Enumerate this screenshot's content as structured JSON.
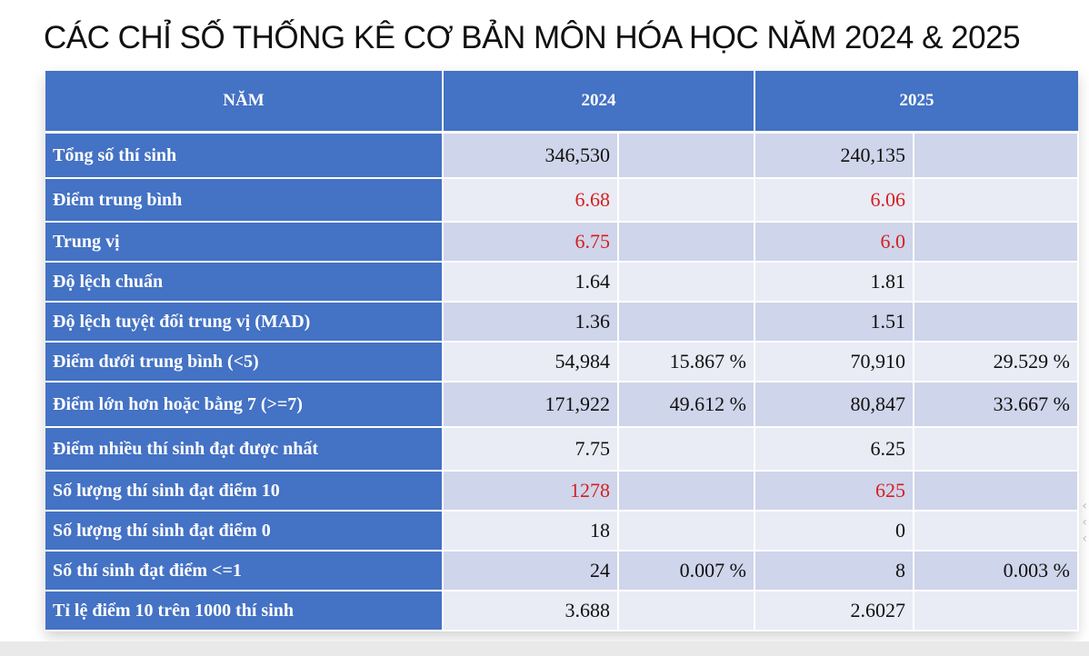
{
  "title": "CÁC CHỈ SỐ THỐNG KÊ CƠ BẢN MÔN HÓA HỌC NĂM 2024 & 2025",
  "header": {
    "col_label": "NĂM",
    "year1": "2024",
    "year2": "2025"
  },
  "accent_red": "#d42020",
  "header_blue": "#4472c4",
  "rows": [
    {
      "label": "Tổng số thí sinh",
      "v2024": "346,530",
      "p2024": "",
      "v2025": "240,135",
      "p2025": ""
    },
    {
      "label": "Điểm trung bình",
      "v2024": "6.68",
      "p2024": "",
      "v2025": "6.06",
      "p2025": ""
    },
    {
      "label": "Trung vị",
      "v2024": "6.75",
      "p2024": "",
      "v2025": "6.0",
      "p2025": ""
    },
    {
      "label": "Độ lệch chuẩn",
      "v2024": "1.64",
      "p2024": "",
      "v2025": "1.81",
      "p2025": ""
    },
    {
      "label": "Độ lệch tuyệt đối trung vị (MAD)",
      "v2024": "1.36",
      "p2024": "",
      "v2025": "1.51",
      "p2025": ""
    },
    {
      "label": "Điểm dưới trung bình (<5)",
      "v2024": "54,984",
      "p2024": "15.867 %",
      "v2025": "70,910",
      "p2025": "29.529 %"
    },
    {
      "label": "Điểm lớn hơn hoặc bằng 7 (>=7)",
      "v2024": "171,922",
      "p2024": "49.612 %",
      "v2025": "80,847",
      "p2025": "33.667 %"
    },
    {
      "label": "Điểm nhiều thí sinh đạt được nhất",
      "v2024": "7.75",
      "p2024": "",
      "v2025": "6.25",
      "p2025": ""
    },
    {
      "label": "Số lượng thí sinh đạt điểm 10",
      "v2024": "1278",
      "p2024": "",
      "v2025": "625",
      "p2025": ""
    },
    {
      "label": "Số lượng thí sinh đạt điểm 0",
      "v2024": "18",
      "p2024": "",
      "v2025": "0",
      "p2025": ""
    },
    {
      "label": "Số thí sinh đạt điểm <=1",
      "v2024": "24",
      "p2024": "0.007 %",
      "v2025": "8",
      "p2025": "0.003 %"
    },
    {
      "label": "Tỉ lệ điểm 10 trên 1000 thí sinh",
      "v2024": "3.688",
      "p2024": "",
      "v2025": "2.6027",
      "p2025": ""
    }
  ]
}
